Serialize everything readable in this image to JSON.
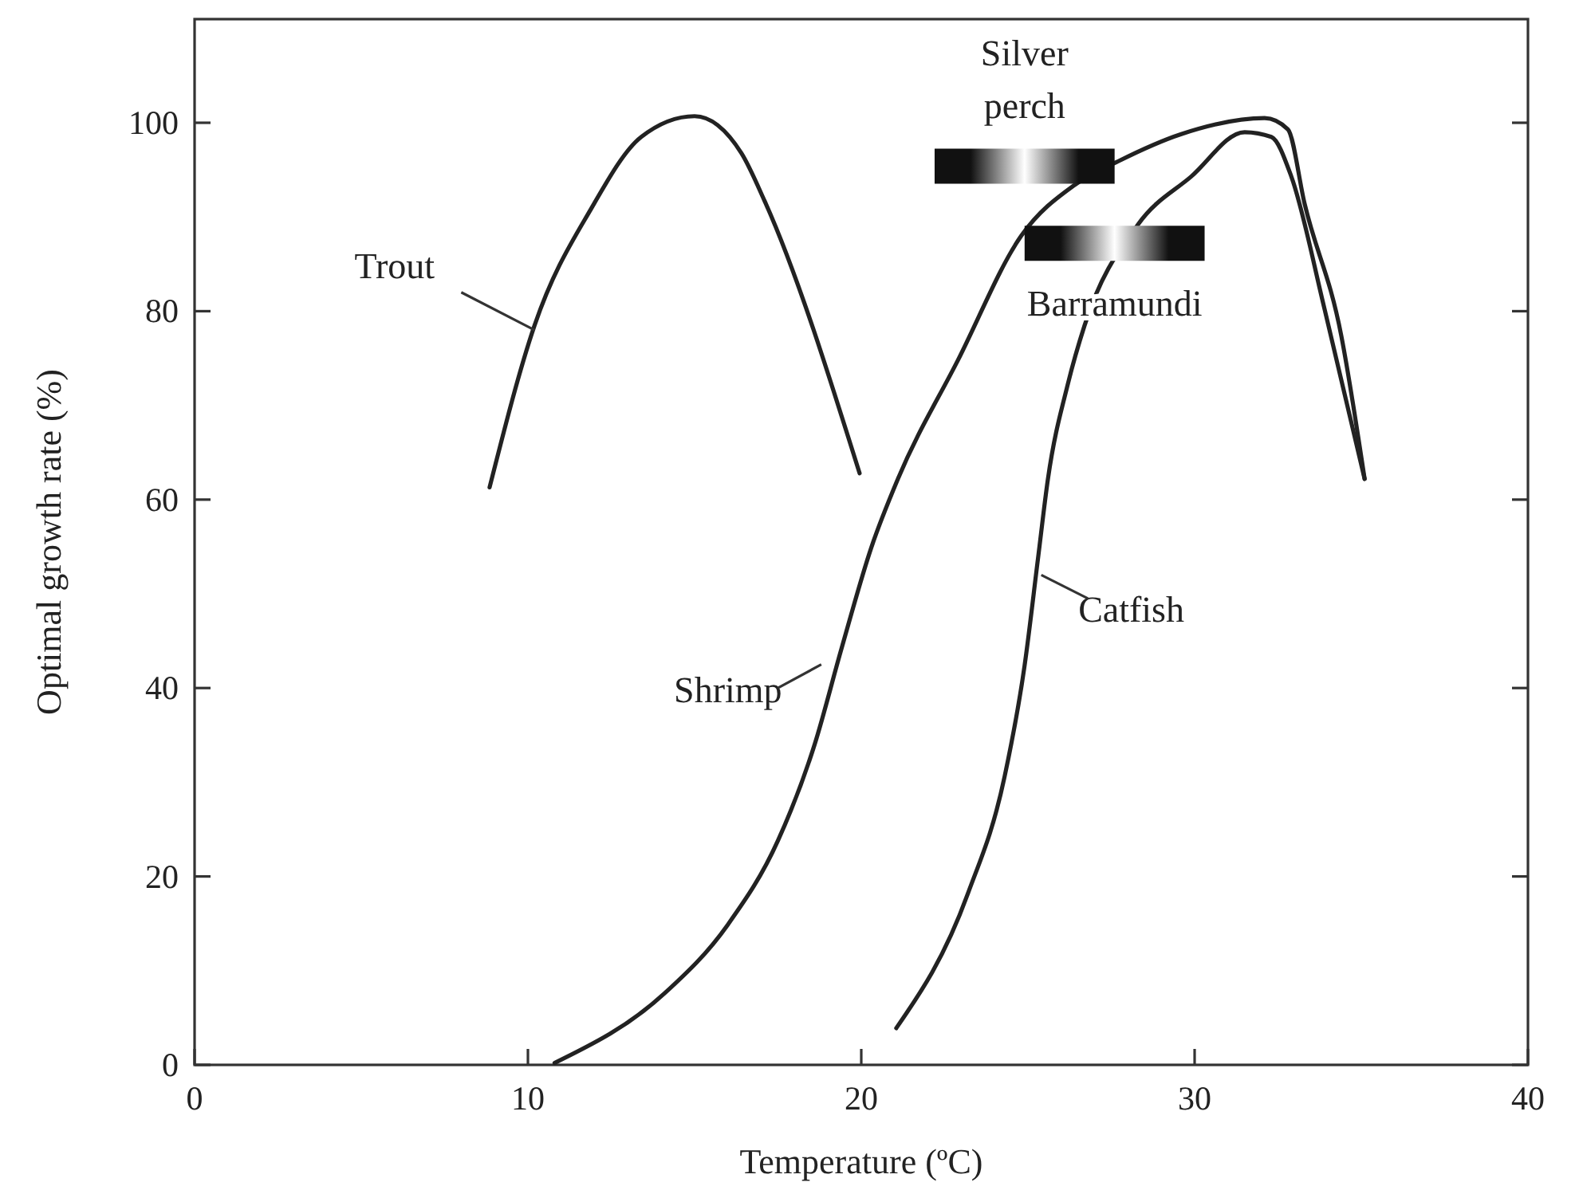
{
  "chart_data": {
    "type": "line",
    "xlabel": "Temperature (ºC)",
    "ylabel": "Optimal growth rate (%)",
    "xlim": [
      0,
      40
    ],
    "xticks": [
      0,
      10,
      20,
      30,
      40
    ],
    "ylim": [
      0,
      111
    ],
    "yticks": [
      0,
      20,
      40,
      60,
      80,
      100
    ],
    "grid": false,
    "marker": "none",
    "line_style": "solid",
    "series": [
      {
        "name": "Trout",
        "color": "#222222",
        "x": [
          8.85,
          10.2,
          11.9,
          13.4,
          15.0,
          16.4,
          17.1,
          19.95
        ],
        "values": [
          61.3,
          78.5,
          90.9,
          98.5,
          100.7,
          96.8,
          91.7,
          62.8
        ]
      },
      {
        "name": "Shrimp",
        "color": "#222222",
        "x": [
          10.8,
          14.1,
          16.0,
          17.5,
          18.6,
          19.4,
          20.3,
          21.1,
          22.9,
          24.8,
          26.4,
          27.7,
          29.6,
          32.1,
          32.8,
          33.3,
          34.4,
          35.1
        ],
        "values": [
          0.2,
          7.6,
          14.9,
          23.8,
          34.0,
          44.1,
          54.9,
          62.2,
          74.8,
          88.0,
          93.4,
          95.9,
          98.8,
          100.5,
          99.3,
          91.4,
          77.4,
          62.2
        ]
      },
      {
        "name": "Catfish",
        "color": "#222222",
        "x": [
          21.05,
          23.2,
          24.3,
          24.9,
          25.3,
          25.6,
          26.2,
          26.7,
          28.3,
          29.9,
          31.5,
          32.3,
          32.9,
          33.9,
          35.1
        ],
        "values": [
          3.9,
          18.2,
          30.6,
          42.4,
          53.7,
          62.2,
          72.3,
          78.5,
          89.2,
          94.3,
          99.0,
          98.5,
          94.3,
          80.2,
          62.2
        ]
      },
      {
        "name": "Silver perch",
        "type": "step",
        "color": "#111111",
        "x": [
          22.2,
          27.6
        ],
        "values": [
          95.4,
          95.4
        ]
      },
      {
        "name": "Barramundi",
        "type": "step",
        "color": "#111111",
        "x": [
          24.9,
          30.3
        ],
        "values": [
          87.2,
          87.2
        ]
      }
    ]
  }
}
